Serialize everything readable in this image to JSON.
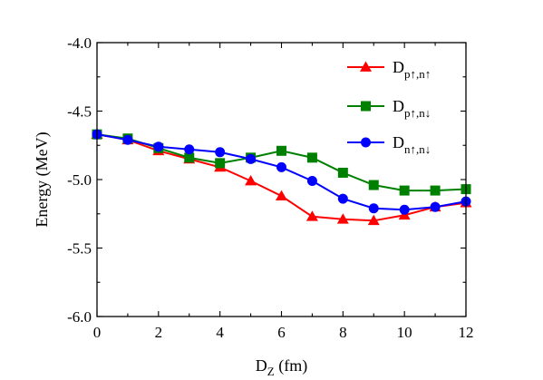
{
  "chart_data": {
    "type": "line",
    "xlabel": {
      "main": "D",
      "sub": "Z",
      "unit": " (fm)"
    },
    "ylabel": "Energy (MeV)",
    "xlim": [
      0,
      12
    ],
    "ylim": [
      -6.0,
      -4.0
    ],
    "x_ticks": [
      "0",
      "2",
      "4",
      "6",
      "8",
      "10",
      "12"
    ],
    "y_ticks": [
      "-4.0",
      "-4.5",
      "-5.0",
      "-5.5",
      "-6.0"
    ],
    "grid": false,
    "legend_position": "top-right",
    "x": [
      0,
      1,
      2,
      3,
      4,
      5,
      6,
      7,
      8,
      9,
      10,
      11,
      12
    ],
    "series": [
      {
        "name_main": "D",
        "name_sub": "p↑,n↑",
        "color": "#ff0000",
        "marker": "triangle",
        "values": [
          -4.67,
          -4.71,
          -4.79,
          -4.85,
          -4.91,
          -5.01,
          -5.12,
          -5.27,
          -5.29,
          -5.3,
          -5.26,
          -5.2,
          -5.17
        ]
      },
      {
        "name_main": "D",
        "name_sub": "p↑,n↓",
        "color": "#008000",
        "marker": "square",
        "values": [
          -4.67,
          -4.7,
          -4.77,
          -4.84,
          -4.88,
          -4.84,
          -4.79,
          -4.84,
          -4.95,
          -5.04,
          -5.08,
          -5.08,
          -5.07
        ]
      },
      {
        "name_main": "D",
        "name_sub": "n↑,n↓",
        "color": "#0000ff",
        "marker": "circle",
        "values": [
          -4.67,
          -4.71,
          -4.76,
          -4.78,
          -4.8,
          -4.85,
          -4.91,
          -5.01,
          -5.14,
          -5.21,
          -5.22,
          -5.2,
          -5.16
        ]
      }
    ]
  }
}
